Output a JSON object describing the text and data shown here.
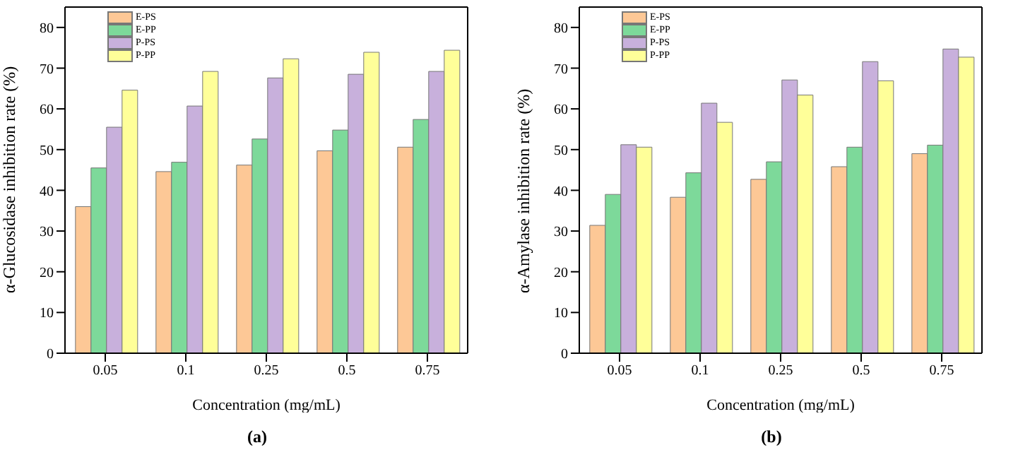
{
  "chart_data": [
    {
      "type": "bar",
      "xlabel": "Concentration (mg/mL)",
      "ylabel": "α-Glucosidase inhibition rate (%)",
      "annotations": [
        "(a)"
      ],
      "categories": [
        "0.05",
        "0.1",
        "0.25",
        "0.5",
        "0.75"
      ],
      "ylim": [
        0,
        85
      ],
      "yticks": [
        0,
        10,
        20,
        30,
        40,
        50,
        60,
        70,
        80
      ],
      "legend": "top left",
      "series": [
        {
          "name": "E-PS",
          "color": "#fdc896",
          "values": [
            36,
            44.6,
            46.2,
            49.7,
            50.6
          ]
        },
        {
          "name": "E-PP",
          "color": "#7dd99a",
          "values": [
            45.5,
            46.9,
            52.6,
            54.8,
            57.4
          ]
        },
        {
          "name": "P-PS",
          "color": "#c8b0dc",
          "values": [
            55.5,
            60.7,
            67.6,
            68.5,
            69.2
          ]
        },
        {
          "name": "P-PP",
          "color": "#ffff99",
          "values": [
            64.6,
            69.2,
            72.3,
            73.9,
            74.4
          ]
        }
      ]
    },
    {
      "type": "bar",
      "xlabel": "Concentration (mg/mL)",
      "ylabel": "α-Amylase inhibition rate (%)",
      "annotations": [
        "(b)"
      ],
      "categories": [
        "0.05",
        "0.1",
        "0.25",
        "0.5",
        "0.75"
      ],
      "ylim": [
        0,
        85
      ],
      "yticks": [
        0,
        10,
        20,
        30,
        40,
        50,
        60,
        70,
        80
      ],
      "legend": "top left",
      "series": [
        {
          "name": "E-PS",
          "color": "#fdc896",
          "values": [
            31.4,
            38.3,
            42.7,
            45.8,
            49
          ]
        },
        {
          "name": "E-PP",
          "color": "#7dd99a",
          "values": [
            39,
            44.3,
            47,
            50.6,
            51.1
          ]
        },
        {
          "name": "P-PS",
          "color": "#c8b0dc",
          "values": [
            51.2,
            61.4,
            67.1,
            71.6,
            74.7
          ]
        },
        {
          "name": "P-PP",
          "color": "#ffff99",
          "values": [
            50.6,
            56.7,
            63.4,
            66.9,
            72.7
          ]
        }
      ]
    }
  ]
}
